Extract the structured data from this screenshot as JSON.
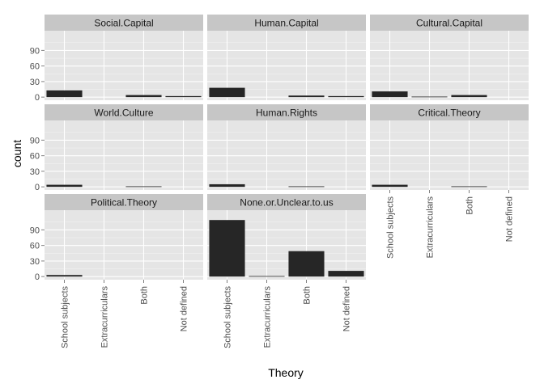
{
  "chart_data": {
    "type": "bar",
    "xlabel": "Theory",
    "ylabel": "count",
    "categories": [
      "School subjects",
      "Extracurriculars",
      "Both",
      "Not defined"
    ],
    "yticks": [
      0,
      30,
      60,
      90
    ],
    "ylim": [
      -6,
      128
    ],
    "grid": true,
    "facets": [
      {
        "name": "Social.Capital",
        "values": [
          13,
          0,
          4,
          2
        ]
      },
      {
        "name": "Human.Capital",
        "values": [
          18,
          0,
          3,
          2
        ]
      },
      {
        "name": "Cultural.Capital",
        "values": [
          11,
          1,
          4,
          0
        ]
      },
      {
        "name": "World.Culture",
        "values": [
          4,
          0,
          1,
          0
        ]
      },
      {
        "name": "Human.Rights",
        "values": [
          5,
          0,
          1,
          0
        ]
      },
      {
        "name": "Critical.Theory",
        "values": [
          4,
          0,
          1,
          0
        ]
      },
      {
        "name": "Political.Theory",
        "values": [
          3,
          0,
          0,
          0
        ]
      },
      {
        "name": "None.or.Unclear.to.us",
        "values": [
          109,
          1,
          49,
          11
        ]
      }
    ]
  }
}
